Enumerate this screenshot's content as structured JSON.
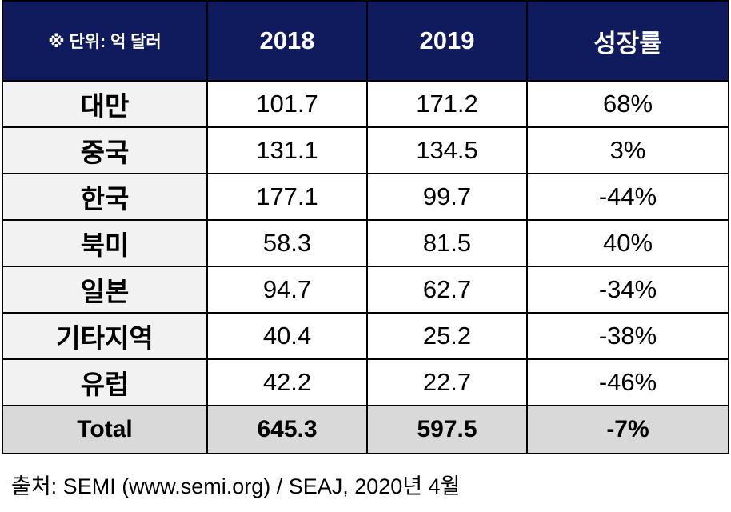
{
  "chart_data": {
    "type": "table",
    "unit_note": "※ 단위: 억 달러",
    "columns": [
      "2018",
      "2019",
      "성장률"
    ],
    "rows": [
      {
        "region": "대만",
        "y2018": "101.7",
        "y2019": "171.2",
        "growth": "68%"
      },
      {
        "region": "중국",
        "y2018": "131.1",
        "y2019": "134.5",
        "growth": "3%"
      },
      {
        "region": "한국",
        "y2018": "177.1",
        "y2019": "99.7",
        "growth": "-44%"
      },
      {
        "region": "북미",
        "y2018": "58.3",
        "y2019": "81.5",
        "growth": "40%"
      },
      {
        "region": "일본",
        "y2018": "94.7",
        "y2019": "62.7",
        "growth": "-34%"
      },
      {
        "region": "기타지역",
        "y2018": "40.4",
        "y2019": "25.2",
        "growth": "-38%"
      },
      {
        "region": "유럽",
        "y2018": "42.2",
        "y2019": "22.7",
        "growth": "-46%"
      }
    ],
    "total": {
      "label": "Total",
      "y2018": "645.3",
      "y2019": "597.5",
      "growth": "-7%"
    }
  },
  "source": "출처: SEMI (www.semi.org) / SEAJ, 2020년 4월",
  "colors": {
    "header_bg": "#0f1b5c",
    "header_text": "#ffffff",
    "region_bg": "#f2f2f2",
    "total_bg": "#d9d9d9"
  }
}
